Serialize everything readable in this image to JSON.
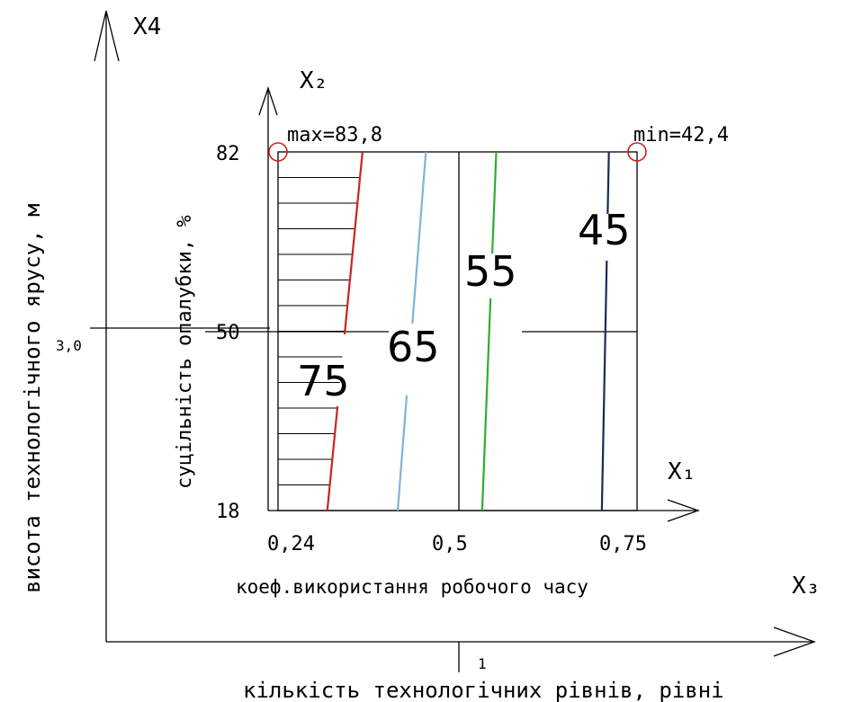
{
  "chart_data": {
    "type": "contour",
    "outer_axes": {
      "x_axis_name": "X₃",
      "y_axis_name": "X4",
      "x_label": "кількість технологічних рівнів, рівні",
      "y_label": "висота технологічного ярусу, м",
      "x_tick": "1",
      "y_tick": "3,0"
    },
    "inner_axes": {
      "x_axis_name": "X₁",
      "y_axis_name": "X₂",
      "x_label": "коеф.використання робочого часу",
      "y_label": "суцільність опалубки, %",
      "x_ticks": [
        "0,24",
        "0,5",
        "0,75"
      ],
      "y_ticks": [
        "82",
        "50",
        "18"
      ],
      "xlim": [
        0.24,
        0.75
      ],
      "ylim": [
        18,
        82
      ]
    },
    "contours": [
      {
        "level": "75",
        "label": "75",
        "color": "#cc2222",
        "x_at_y18": 0.31,
        "x_at_y82": 0.36
      },
      {
        "level": "65",
        "label": "65",
        "color": "#7fb3d9",
        "x_at_y18": 0.41,
        "x_at_y82": 0.45
      },
      {
        "level": "55",
        "label": "55",
        "color": "#33aa33",
        "x_at_y18": 0.53,
        "x_at_y82": 0.55
      },
      {
        "level": "45",
        "label": "45",
        "color": "#1a2a5a",
        "x_at_y18": 0.7,
        "x_at_y82": 0.71
      }
    ],
    "extrema": [
      {
        "label": "max=83,8",
        "x": 0.24,
        "y": 82,
        "color": "#cc2222"
      },
      {
        "label": "min=42,4",
        "x": 0.75,
        "y": 82,
        "color": "#cc2222"
      }
    ]
  }
}
